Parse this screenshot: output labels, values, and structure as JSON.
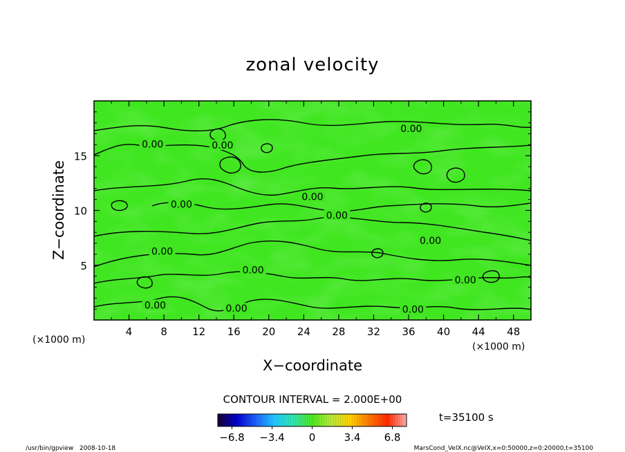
{
  "chart_data": {
    "type": "heatmap",
    "title": "zonal velocity",
    "xlabel": "X−coordinate",
    "ylabel": "Z−coordinate",
    "x_unit": "(×1000 m)",
    "z_unit": "(×1000 m)",
    "xlim": [
      0,
      50
    ],
    "ylim": [
      0,
      20
    ],
    "x_ticks": [
      4,
      8,
      12,
      16,
      20,
      24,
      28,
      32,
      36,
      40,
      44,
      48
    ],
    "y_ticks": [
      5,
      10,
      15
    ],
    "contour_interval_text": "CONTOUR INTERVAL = 2.000E+00",
    "contour_levels_labeled": [
      "0.00"
    ],
    "contour_labels": [
      {
        "text": "0.00",
        "x": 6.7,
        "z": 16.0
      },
      {
        "text": "0.00",
        "x": 14.7,
        "z": 15.9
      },
      {
        "text": "0.00",
        "x": 36.3,
        "z": 17.4
      },
      {
        "text": "0.00",
        "x": 25.0,
        "z": 11.2
      },
      {
        "text": "0.00",
        "x": 10.0,
        "z": 10.5
      },
      {
        "text": "0.00",
        "x": 27.8,
        "z": 9.5
      },
      {
        "text": "0.00",
        "x": 38.5,
        "z": 7.2
      },
      {
        "text": "0.00",
        "x": 7.8,
        "z": 6.2
      },
      {
        "text": "0.00",
        "x": 18.2,
        "z": 4.5
      },
      {
        "text": "0.00",
        "x": 42.5,
        "z": 3.6
      },
      {
        "text": "0.00",
        "x": 7.0,
        "z": 1.3
      },
      {
        "text": "0.00",
        "x": 16.3,
        "z": 1.0
      },
      {
        "text": "0.00",
        "x": 36.5,
        "z": 0.9
      }
    ],
    "colorbar": {
      "range": [
        -8.0,
        8.0
      ],
      "tick_labels": [
        "−6.8",
        "−3.4",
        "0",
        "3.4",
        "6.8"
      ],
      "tick_values": [
        -6.8,
        -3.4,
        0,
        3.4,
        6.8
      ],
      "colormap": [
        "#1a0033",
        "#0000cc",
        "#2060ff",
        "#20c8ff",
        "#30e6b0",
        "#4ce81e",
        "#b8e83a",
        "#ffd200",
        "#ff7a00",
        "#ff2a00",
        "#ffb0b0"
      ]
    },
    "field_color": "#40e620",
    "time_label": "t=35100 s",
    "footer_left": "/usr/bin/gpview   2008-10-18",
    "footer_right": "MarsCond_VelX.nc@VelX,x=0:50000,z=0:20000,t=35100"
  }
}
